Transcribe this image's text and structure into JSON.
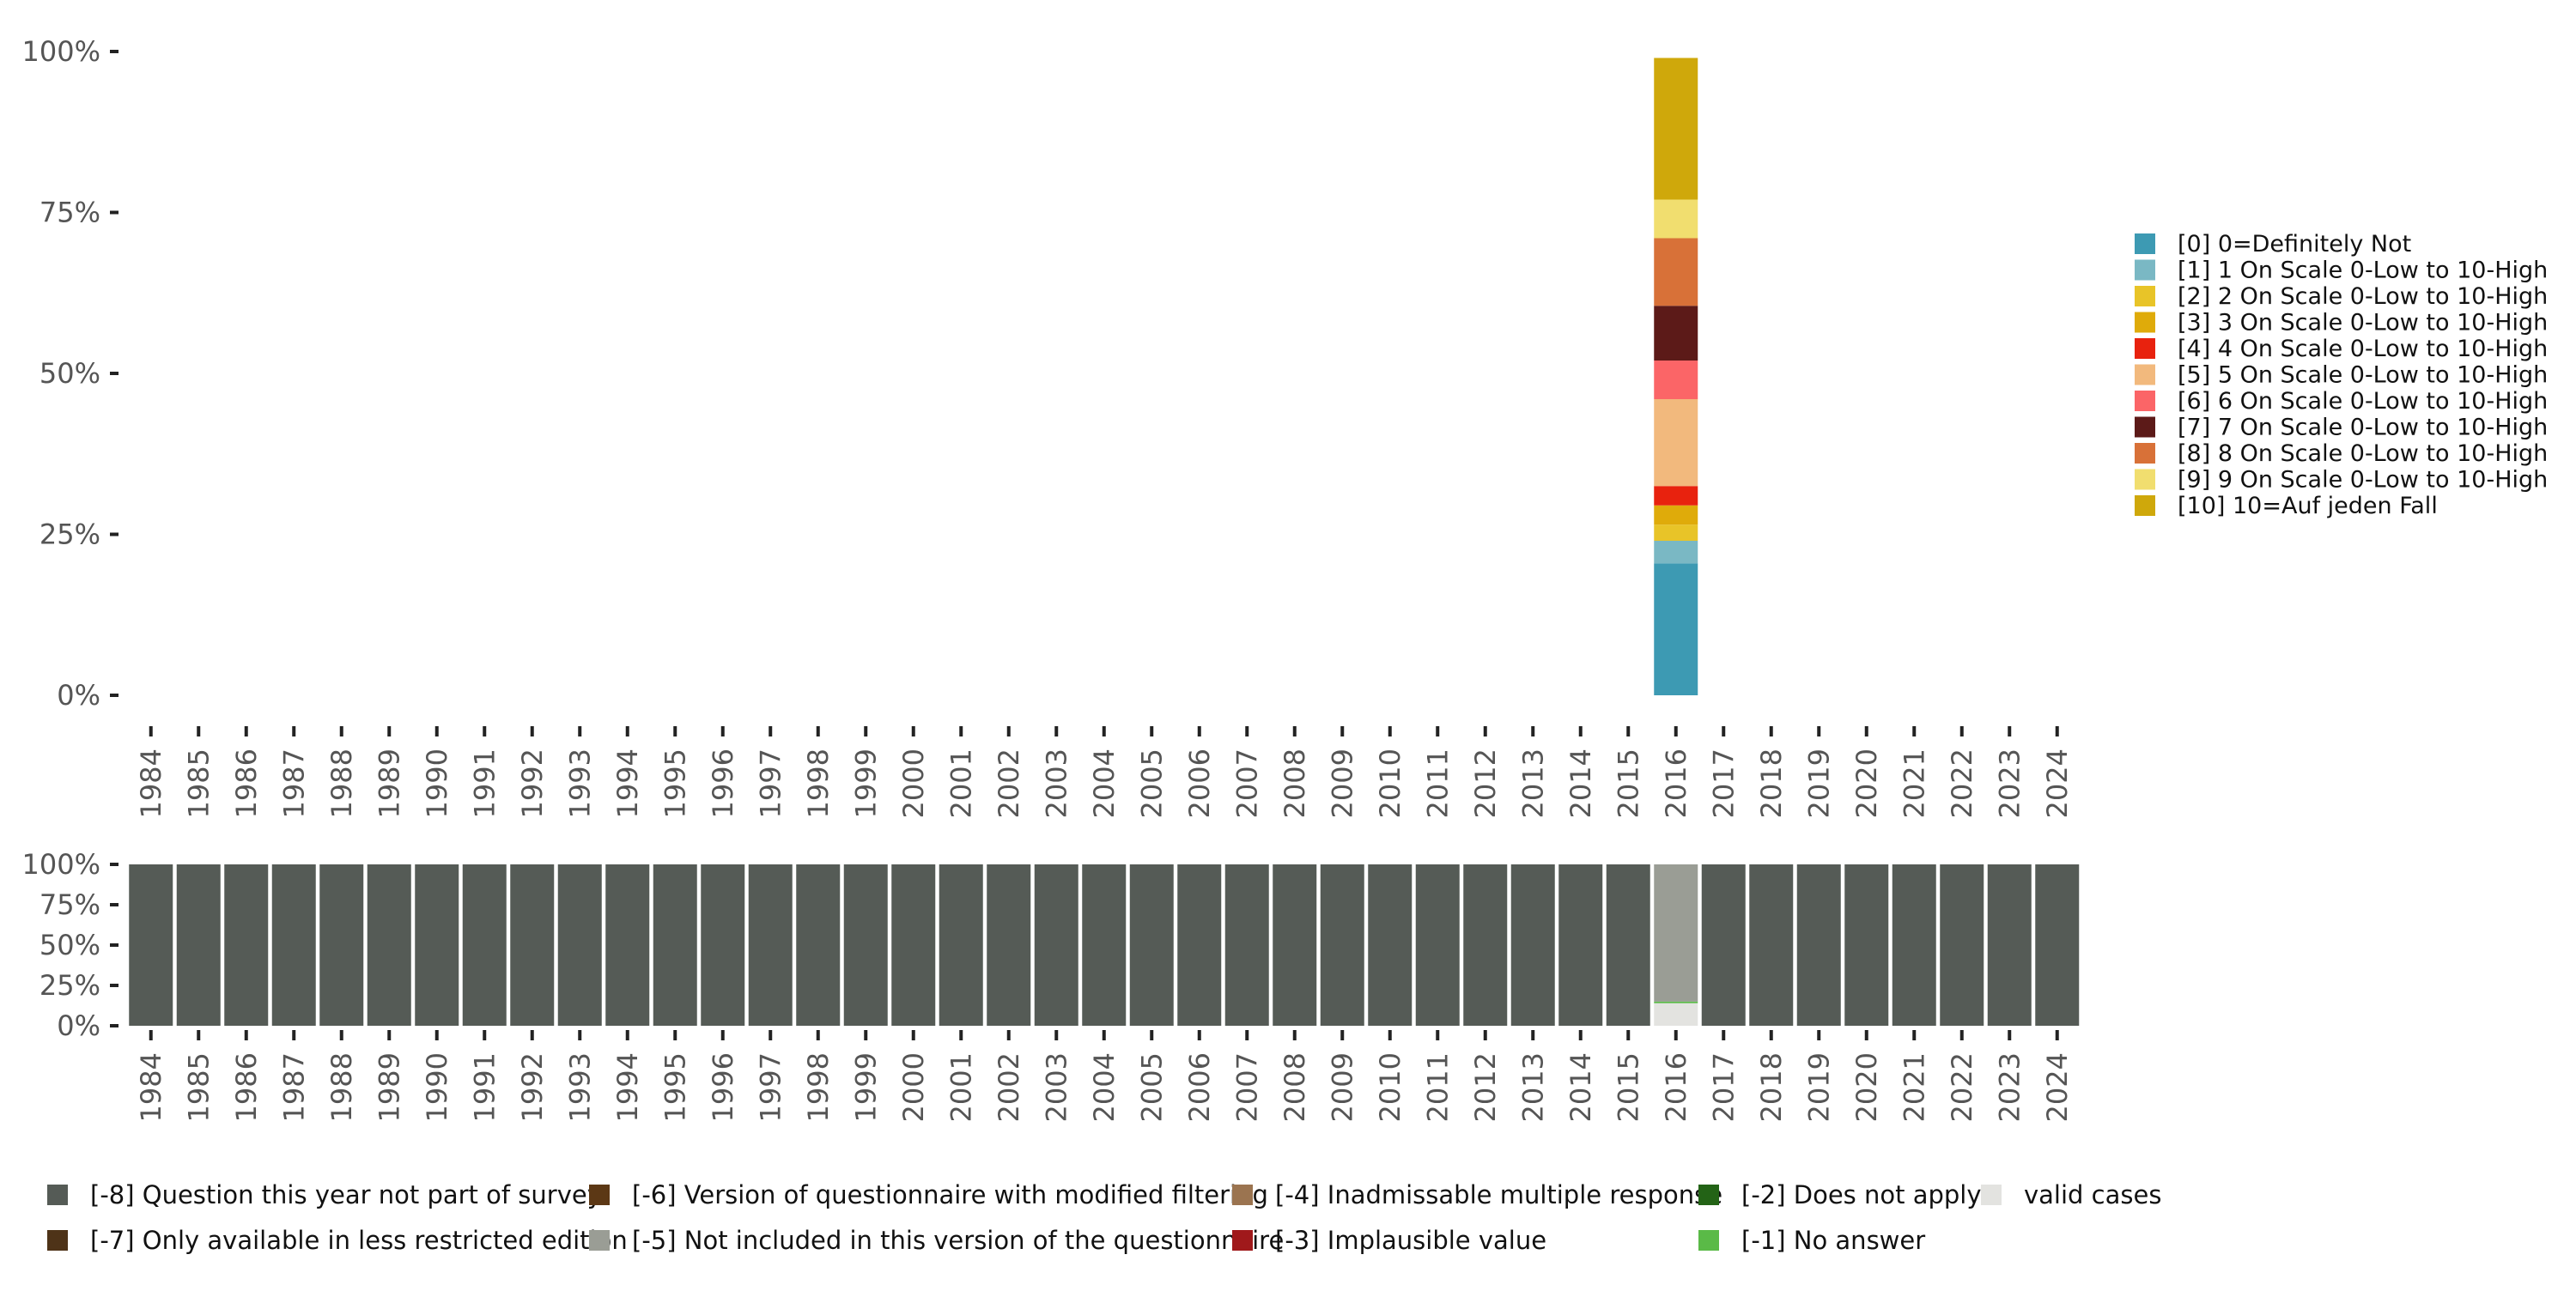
{
  "chart_data": [
    {
      "type": "bar",
      "stacked": true,
      "ylim": [
        0,
        100
      ],
      "yticks": [
        "0%",
        "25%",
        "50%",
        "75%",
        "100%"
      ],
      "legend_position": "right",
      "categories": [
        "1984",
        "1985",
        "1986",
        "1987",
        "1988",
        "1989",
        "1990",
        "1991",
        "1992",
        "1993",
        "1994",
        "1995",
        "1996",
        "1997",
        "1998",
        "1999",
        "2000",
        "2001",
        "2002",
        "2003",
        "2004",
        "2005",
        "2006",
        "2007",
        "2008",
        "2009",
        "2010",
        "2011",
        "2012",
        "2013",
        "2014",
        "2015",
        "2016",
        "2017",
        "2018",
        "2019",
        "2020",
        "2021",
        "2022",
        "2023",
        "2024"
      ],
      "series": [
        {
          "name": "[0] 0=Definitely Not",
          "color": "#3d9ab3",
          "data": {
            "2016": 20.5
          }
        },
        {
          "name": "[1] 1 On Scale 0-Low to 10-High",
          "color": "#7ab8c4",
          "data": {
            "2016": 3.5
          }
        },
        {
          "name": "[2] 2 On Scale 0-Low to 10-High",
          "color": "#e8c428",
          "data": {
            "2016": 2.5
          }
        },
        {
          "name": "[3] 3 On Scale 0-Low to 10-High",
          "color": "#dfab0a",
          "data": {
            "2016": 3.0
          }
        },
        {
          "name": "[4] 4 On Scale 0-Low to 10-High",
          "color": "#e8220e",
          "data": {
            "2016": 3.0
          }
        },
        {
          "name": "[5] 5 On Scale 0-Low to 10-High",
          "color": "#f2b97d",
          "data": {
            "2016": 13.5
          }
        },
        {
          "name": "[6] 6 On Scale 0-Low to 10-High",
          "color": "#fb6567",
          "data": {
            "2016": 6.0
          }
        },
        {
          "name": "[7] 7 On Scale 0-Low to 10-High",
          "color": "#5c1a18",
          "data": {
            "2016": 8.5
          }
        },
        {
          "name": "[8] 8 On Scale 0-Low to 10-High",
          "color": "#d87138",
          "data": {
            "2016": 10.5
          }
        },
        {
          "name": "[9] 9 On Scale 0-Low to 10-High",
          "color": "#f1de6f",
          "data": {
            "2016": 6.0
          }
        },
        {
          "name": "[10] 10=Auf jeden Fall",
          "color": "#cfa80b",
          "data": {
            "2016": 22.0
          }
        }
      ]
    },
    {
      "type": "bar",
      "stacked": true,
      "ylim": [
        0,
        100
      ],
      "yticks": [
        "0%",
        "25%",
        "50%",
        "75%",
        "100%"
      ],
      "legend_position": "bottom",
      "categories": [
        "1984",
        "1985",
        "1986",
        "1987",
        "1988",
        "1989",
        "1990",
        "1991",
        "1992",
        "1993",
        "1994",
        "1995",
        "1996",
        "1997",
        "1998",
        "1999",
        "2000",
        "2001",
        "2002",
        "2003",
        "2004",
        "2005",
        "2006",
        "2007",
        "2008",
        "2009",
        "2010",
        "2011",
        "2012",
        "2013",
        "2014",
        "2015",
        "2016",
        "2017",
        "2018",
        "2019",
        "2020",
        "2021",
        "2022",
        "2023",
        "2024"
      ],
      "legend_order": [
        "[-8] Question this year not part of survey",
        "[-6] Version of questionnaire with modified filtering",
        "[-4] Inadmissable multiple response",
        "[-2] Does not apply",
        "valid cases",
        "[-7] Only available in less restricted edition",
        "[-5] Not included in this version of the questionnaire",
        "[-3] Implausible value",
        "[-1] No answer"
      ],
      "series": [
        {
          "name": "valid cases",
          "color": "#e3e3e0",
          "default": 0,
          "data": {
            "2016": 14
          }
        },
        {
          "name": "[-1] No answer",
          "color": "#5aba47",
          "default": 0,
          "data": {
            "2016": 1
          }
        },
        {
          "name": "[-2] Does not apply",
          "color": "#236316",
          "default": 0,
          "data": {}
        },
        {
          "name": "[-3] Implausible value",
          "color": "#a0191b",
          "default": 0,
          "data": {}
        },
        {
          "name": "[-4] Inadmissable multiple response",
          "color": "#9b7450",
          "default": 0,
          "data": {}
        },
        {
          "name": "[-5] Not included in this version of the questionnaire",
          "color": "#9a9d95",
          "default": 0,
          "data": {
            "2016": 85
          }
        },
        {
          "name": "[-6] Version of questionnaire with modified filtering",
          "color": "#5c3815",
          "default": 0,
          "data": {}
        },
        {
          "name": "[-7] Only available in less restricted edition",
          "color": "#4e3318",
          "default": 0,
          "data": {}
        },
        {
          "name": "[-8] Question this year not part of survey",
          "color": "#555b56",
          "default": 100,
          "data": {
            "2016": 0
          }
        }
      ]
    }
  ]
}
